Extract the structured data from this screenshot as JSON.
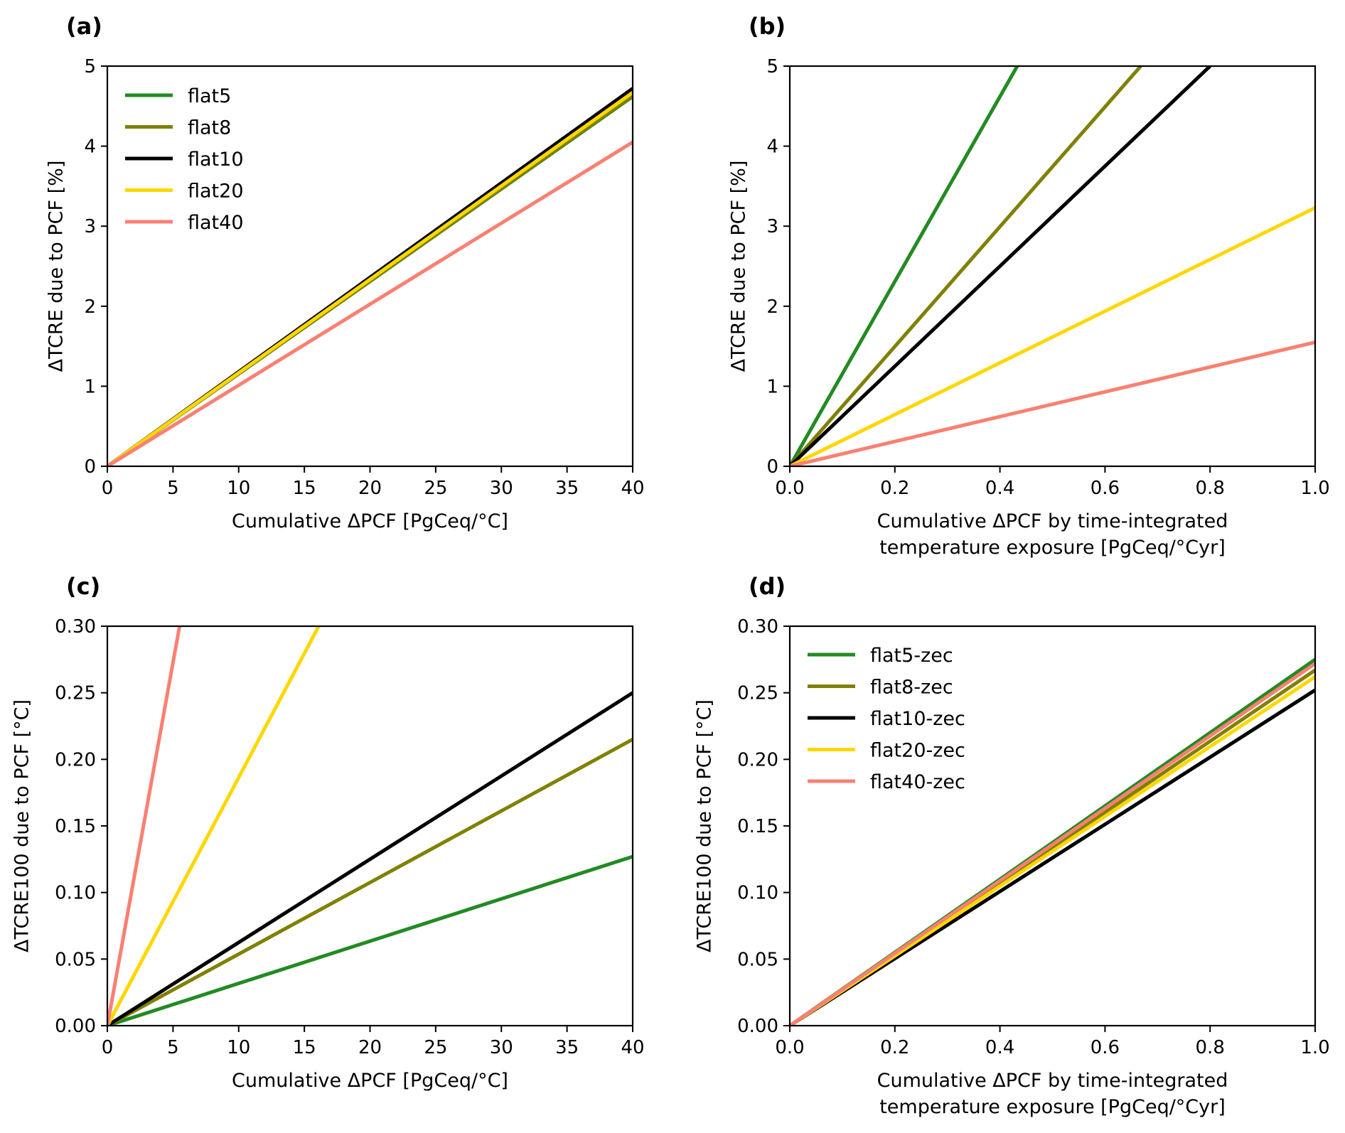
{
  "chart_data": [
    {
      "panel_label": "(a)",
      "type": "line",
      "title": "",
      "xlabel": [
        "Cumulative ΔPCF [PgCeq/°C]"
      ],
      "ylabel": "ΔTCRE due to PCF [%]",
      "xlim": [
        0,
        40
      ],
      "ylim": [
        0,
        5
      ],
      "xticks": [
        0,
        5,
        10,
        15,
        20,
        25,
        30,
        35,
        40
      ],
      "xtick_labels": [
        "0",
        "5",
        "10",
        "15",
        "20",
        "25",
        "30",
        "35",
        "40"
      ],
      "yticks": [
        0,
        1,
        2,
        3,
        4,
        5
      ],
      "ytick_labels": [
        "0",
        "1",
        "2",
        "3",
        "4",
        "5"
      ],
      "grid": false,
      "legend": "top-left",
      "show_legend": true,
      "series": [
        {
          "name": "flat5",
          "color": "#228B22",
          "x": [
            0,
            40
          ],
          "y": [
            0,
            4.62
          ]
        },
        {
          "name": "flat8",
          "color": "#808000",
          "x": [
            0,
            40
          ],
          "y": [
            0,
            4.63
          ]
        },
        {
          "name": "flat10",
          "color": "#000000",
          "x": [
            0,
            40
          ],
          "y": [
            0,
            4.72
          ]
        },
        {
          "name": "flat20",
          "color": "#FFD700",
          "x": [
            0,
            40
          ],
          "y": [
            0,
            4.67
          ]
        },
        {
          "name": "flat40",
          "color": "#FA8072",
          "x": [
            0,
            40
          ],
          "y": [
            0,
            4.05
          ]
        }
      ]
    },
    {
      "panel_label": "(b)",
      "type": "line",
      "title": "",
      "xlabel": [
        "Cumulative ΔPCF by time-integrated",
        "temperature exposure [PgCeq/°Cyr]"
      ],
      "ylabel": "ΔTCRE due to PCF [%]",
      "xlim": [
        0,
        1.0
      ],
      "ylim": [
        0,
        5
      ],
      "xticks": [
        0,
        0.2,
        0.4,
        0.6,
        0.8,
        1.0
      ],
      "xtick_labels": [
        "0.0",
        "0.2",
        "0.4",
        "0.6",
        "0.8",
        "1.0"
      ],
      "yticks": [
        0,
        1,
        2,
        3,
        4,
        5
      ],
      "ytick_labels": [
        "0",
        "1",
        "2",
        "3",
        "4",
        "5"
      ],
      "grid": false,
      "show_legend": false,
      "series": [
        {
          "name": "flat5",
          "color": "#228B22",
          "x": [
            0,
            0.433
          ],
          "y": [
            0,
            5.0
          ]
        },
        {
          "name": "flat8",
          "color": "#808000",
          "x": [
            0,
            0.668
          ],
          "y": [
            0,
            5.0
          ]
        },
        {
          "name": "flat10",
          "color": "#000000",
          "x": [
            0,
            0.8
          ],
          "y": [
            0,
            5.0
          ]
        },
        {
          "name": "flat20",
          "color": "#FFD700",
          "x": [
            0,
            1.0
          ],
          "y": [
            0,
            3.23
          ]
        },
        {
          "name": "flat40",
          "color": "#FA8072",
          "x": [
            0,
            1.0
          ],
          "y": [
            0,
            1.55
          ]
        }
      ]
    },
    {
      "panel_label": "(c)",
      "type": "line",
      "title": "",
      "xlabel": [
        "Cumulative ΔPCF [PgCeq/°C]"
      ],
      "ylabel": "ΔTCRE100 due to PCF [°C]",
      "xlim": [
        0,
        40
      ],
      "ylim": [
        0,
        0.3
      ],
      "xticks": [
        0,
        5,
        10,
        15,
        20,
        25,
        30,
        35,
        40
      ],
      "xtick_labels": [
        "0",
        "5",
        "10",
        "15",
        "20",
        "25",
        "30",
        "35",
        "40"
      ],
      "yticks": [
        0,
        0.05,
        0.1,
        0.15,
        0.2,
        0.25,
        0.3
      ],
      "ytick_labels": [
        "0.00",
        "0.05",
        "0.10",
        "0.15",
        "0.20",
        "0.25",
        "0.30"
      ],
      "grid": false,
      "show_legend": false,
      "series": [
        {
          "name": "flat5",
          "color": "#228B22",
          "x": [
            0,
            40
          ],
          "y": [
            0,
            0.127
          ]
        },
        {
          "name": "flat8",
          "color": "#808000",
          "x": [
            0,
            40
          ],
          "y": [
            0,
            0.215
          ]
        },
        {
          "name": "flat10",
          "color": "#000000",
          "x": [
            0,
            40
          ],
          "y": [
            0,
            0.25
          ]
        },
        {
          "name": "flat20",
          "color": "#FFD700",
          "x": [
            0,
            16.1
          ],
          "y": [
            0,
            0.3
          ]
        },
        {
          "name": "flat40",
          "color": "#FA8072",
          "x": [
            0,
            5.5
          ],
          "y": [
            0,
            0.3
          ]
        }
      ]
    },
    {
      "panel_label": "(d)",
      "type": "line",
      "title": "",
      "xlabel": [
        "Cumulative ΔPCF by time-integrated",
        "temperature exposure [PgCeq/°Cyr]"
      ],
      "ylabel": "ΔTCRE100 due to PCF [°C]",
      "xlim": [
        0,
        1.0
      ],
      "ylim": [
        0,
        0.3
      ],
      "xticks": [
        0,
        0.2,
        0.4,
        0.6,
        0.8,
        1.0
      ],
      "xtick_labels": [
        "0.0",
        "0.2",
        "0.4",
        "0.6",
        "0.8",
        "1.0"
      ],
      "yticks": [
        0,
        0.05,
        0.1,
        0.15,
        0.2,
        0.25,
        0.3
      ],
      "ytick_labels": [
        "0.00",
        "0.05",
        "0.10",
        "0.15",
        "0.20",
        "0.25",
        "0.30"
      ],
      "grid": false,
      "legend": "top-left",
      "show_legend": true,
      "series": [
        {
          "name": "flat5-zec",
          "color": "#228B22",
          "x": [
            0,
            1.0
          ],
          "y": [
            0,
            0.275
          ]
        },
        {
          "name": "flat8-zec",
          "color": "#808000",
          "x": [
            0,
            1.0
          ],
          "y": [
            0,
            0.267
          ]
        },
        {
          "name": "flat10-zec",
          "color": "#000000",
          "x": [
            0,
            1.0
          ],
          "y": [
            0,
            0.252
          ]
        },
        {
          "name": "flat20-zec",
          "color": "#FFD700",
          "x": [
            0,
            1.0
          ],
          "y": [
            0,
            0.262
          ]
        },
        {
          "name": "flat40-zec",
          "color": "#FA8072",
          "x": [
            0,
            1.0
          ],
          "y": [
            0,
            0.272
          ]
        }
      ]
    }
  ]
}
